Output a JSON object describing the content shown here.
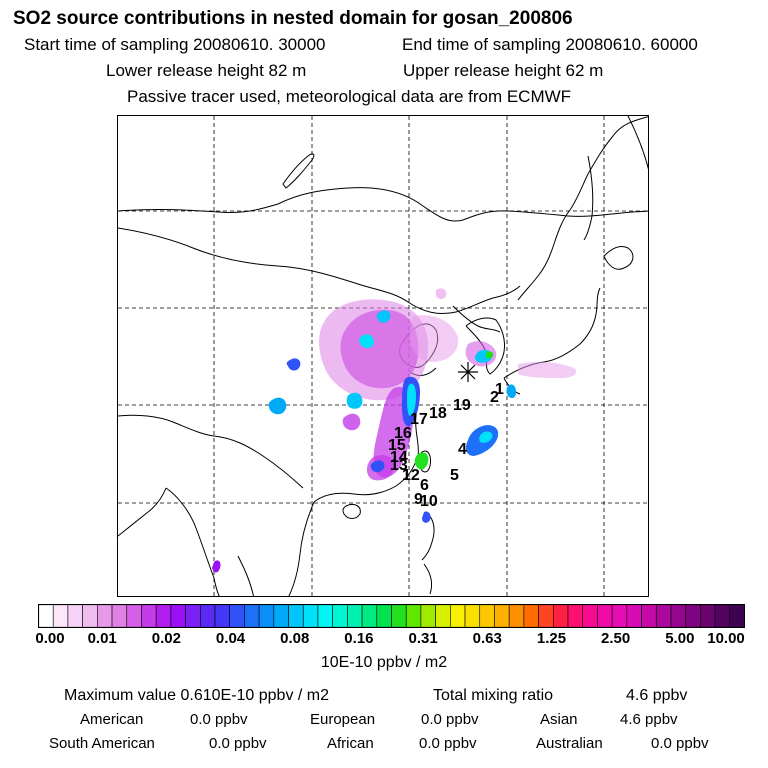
{
  "title": "SO2 source contributions in nested domain for gosan_200806",
  "header": {
    "start_label": "Start time of sampling 20080610. 30000",
    "end_label": "End time of sampling 20080610. 60000",
    "lower_label": "Lower release height   82 m",
    "upper_label": "Upper release height   62 m",
    "tracer_note": "Passive tracer used, meteorological data are from ECMWF"
  },
  "map": {
    "receptor_icon": "asterisk-icon",
    "point_labels": [
      {
        "text": "1"
      },
      {
        "text": "2"
      },
      {
        "text": "4"
      },
      {
        "text": "5"
      },
      {
        "text": "6"
      },
      {
        "text": "9"
      },
      {
        "text": "10"
      },
      {
        "text": "12"
      },
      {
        "text": "13"
      },
      {
        "text": "14"
      },
      {
        "text": "15"
      },
      {
        "text": "16"
      },
      {
        "text": "17"
      },
      {
        "text": "18"
      },
      {
        "text": "19"
      }
    ]
  },
  "colorbar": {
    "colors": [
      "#ffffff",
      "#fbe6fb",
      "#f6d2f6",
      "#f0bdf0",
      "#e699e9",
      "#df80e5",
      "#d55fe6",
      "#c43ce8",
      "#b21df0",
      "#9a11f3",
      "#7a22f3",
      "#5c2bf3",
      "#4338f5",
      "#3152f6",
      "#1d70f7",
      "#0b8ef8",
      "#00aaf9",
      "#00c6fa",
      "#00e0fa",
      "#00f6f3",
      "#00f6d3",
      "#00f2b0",
      "#00ea80",
      "#00e250",
      "#22e020",
      "#60e600",
      "#a0ec00",
      "#d8f000",
      "#f8f000",
      "#fae000",
      "#fcc800",
      "#feb000",
      "#fe9000",
      "#fe6c00",
      "#fe4420",
      "#fe2040",
      "#fe1070",
      "#f80a90",
      "#f00aa8",
      "#e60cb4",
      "#d80cb4",
      "#c40aa8",
      "#ac089c",
      "#96068e",
      "#7e0480",
      "#680370",
      "#520260",
      "#3e0250"
    ],
    "tick_labels": [
      "0.00",
      "0.01",
      "0.02",
      "0.04",
      "0.08",
      "0.16",
      "0.31",
      "0.63",
      "1.25",
      "2.50",
      "5.00",
      "10.00"
    ],
    "unit_label": "10E-10 ppbv / m2"
  },
  "summary": {
    "max_label": "Maximum value  0.610E-10 ppbv / m2",
    "total_label": "Total mixing ratio",
    "total_value": "4.6 ppbv"
  },
  "regions": [
    {
      "name": "American",
      "value": "0.0 ppbv"
    },
    {
      "name": "European",
      "value": "0.0 ppbv"
    },
    {
      "name": "Asian",
      "value": "4.6 ppbv"
    },
    {
      "name": "South American",
      "value": "0.0 ppbv"
    },
    {
      "name": "African",
      "value": "0.0 ppbv"
    },
    {
      "name": "Australian",
      "value": "0.0 ppbv"
    }
  ]
}
